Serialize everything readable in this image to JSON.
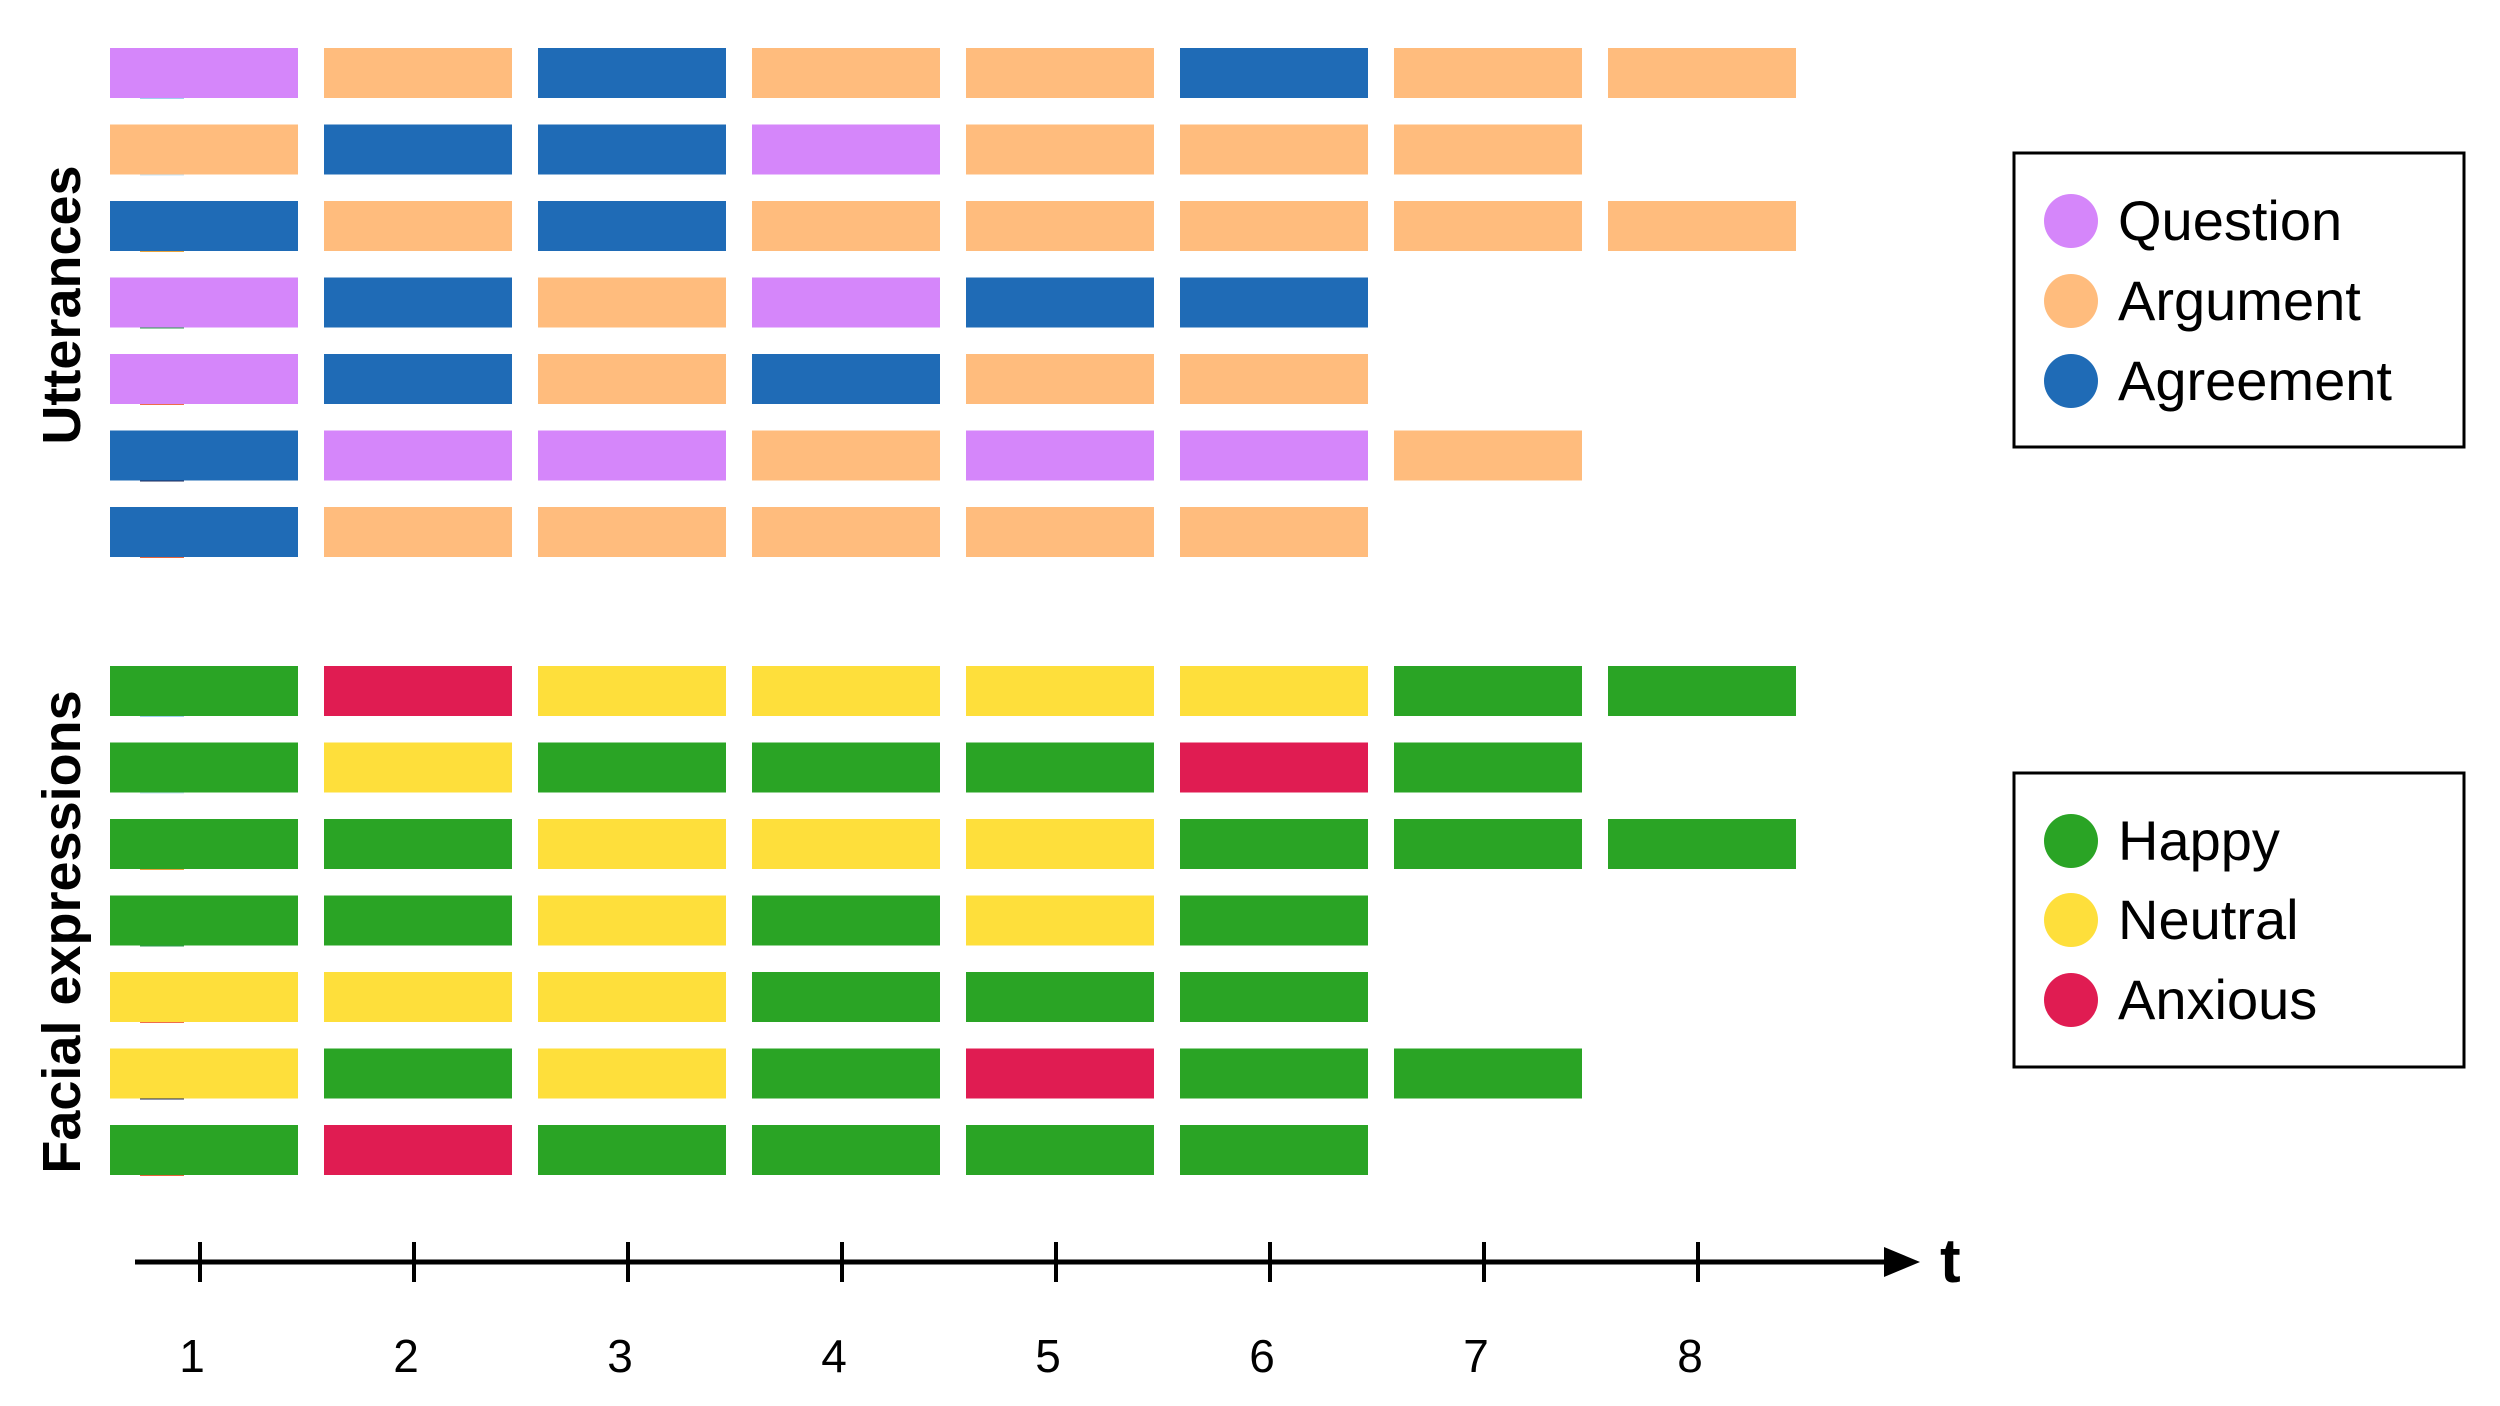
{
  "colors": {
    "Question": "#d586fa",
    "Argument": "#ffbc7d",
    "Agreement": "#1f6bb6",
    "Happy": "#2aa425",
    "Neutral": "#fedf3b",
    "Anxious": "#e01c52"
  },
  "participants": [
    {
      "icon": "elderly-person-avatar-icon",
      "hair": "#c9c9c9",
      "skin": "#f0d2bc",
      "shirt": "#9fd0ef"
    },
    {
      "icon": "red-haired-person-avatar-icon",
      "hair": "#e4612a",
      "skin": "#f5c9a8",
      "shirt": "#c6e3f7"
    },
    {
      "icon": "bearded-person-turban-avatar-icon",
      "hair": "#333333",
      "skin": "#a8704a",
      "shirt": "#e8a33a"
    },
    {
      "icon": "person-glasses-avatar-icon",
      "hair": "#5a3a22",
      "skin": "#f3cfb3",
      "shirt": "#2d9a4f"
    },
    {
      "icon": "braided-hair-person-avatar-icon",
      "hair": "#1e2a5a",
      "skin": "#8d5534",
      "shirt": "#ef6c4a"
    },
    {
      "icon": "dark-skinned-person-avatar-icon",
      "hair": "#1a1a1a",
      "skin": "#6b3f22",
      "shirt": "#1e2a5a"
    },
    {
      "icon": "blonde-person-avatar-icon",
      "hair": "#f0b35a",
      "skin": "#f6d2b6",
      "shirt": "#e8643a"
    }
  ],
  "chart_data": {
    "type": "heatmap",
    "x": [
      1,
      2,
      3,
      4,
      5,
      6,
      7,
      8
    ],
    "xlabel": "t",
    "panels": [
      {
        "title": "Utterances",
        "legend": [
          "Question",
          "Argument",
          "Agreement"
        ],
        "rows": [
          [
            "Question",
            "Argument",
            "Agreement",
            "Argument",
            "Argument",
            "Agreement",
            "Argument",
            "Argument"
          ],
          [
            "Argument",
            "Agreement",
            "Agreement",
            "Question",
            "Argument",
            "Argument",
            "Argument"
          ],
          [
            "Agreement",
            "Argument",
            "Agreement",
            "Argument",
            "Argument",
            "Argument",
            "Argument",
            "Argument"
          ],
          [
            "Question",
            "Agreement",
            "Argument",
            "Question",
            "Agreement",
            "Agreement"
          ],
          [
            "Question",
            "Agreement",
            "Argument",
            "Agreement",
            "Argument",
            "Argument"
          ],
          [
            "Agreement",
            "Question",
            "Question",
            "Argument",
            "Question",
            "Question",
            "Argument"
          ],
          [
            "Agreement",
            "Argument",
            "Argument",
            "Argument",
            "Argument",
            "Argument"
          ]
        ]
      },
      {
        "title": "Facial expressions",
        "legend": [
          "Happy",
          "Neutral",
          "Anxious"
        ],
        "rows": [
          [
            "Happy",
            "Anxious",
            "Neutral",
            "Neutral",
            "Neutral",
            "Neutral",
            "Happy",
            "Happy"
          ],
          [
            "Happy",
            "Neutral",
            "Happy",
            "Happy",
            "Happy",
            "Anxious",
            "Happy"
          ],
          [
            "Happy",
            "Happy",
            "Neutral",
            "Neutral",
            "Neutral",
            "Happy",
            "Happy",
            "Happy"
          ],
          [
            "Happy",
            "Happy",
            "Neutral",
            "Happy",
            "Neutral",
            "Happy"
          ],
          [
            "Neutral",
            "Neutral",
            "Neutral",
            "Happy",
            "Happy",
            "Happy"
          ],
          [
            "Neutral",
            "Happy",
            "Neutral",
            "Happy",
            "Anxious",
            "Happy",
            "Happy"
          ],
          [
            "Happy",
            "Anxious",
            "Happy",
            "Happy",
            "Happy",
            "Happy"
          ]
        ]
      }
    ]
  }
}
